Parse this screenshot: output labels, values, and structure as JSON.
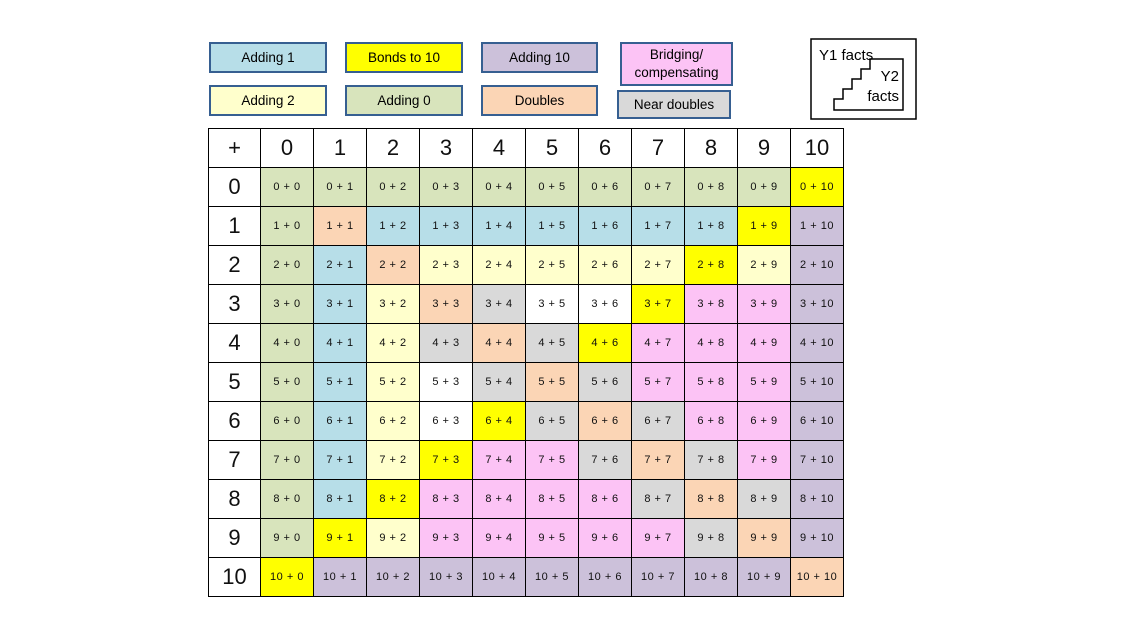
{
  "page": {
    "background": "#FFFFFF"
  },
  "colors": {
    "adding0": "#D8E4BC",
    "adding1": "#B7DEE8",
    "adding2": "#FFFFCC",
    "bonds10": "#FFFF00",
    "adding10": "#CCC1DA",
    "doubles": "#FBD5B5",
    "near": "#D9D9D9",
    "bridge": "#FCC3F5",
    "none": "#FFFFFF",
    "legend_border": "#365F91",
    "grid_line": "#000000"
  },
  "legend": {
    "items": [
      {
        "lines": [
          "Adding 1"
        ],
        "category": "adding1"
      },
      {
        "lines": [
          "Bonds to 10"
        ],
        "category": "bonds10"
      },
      {
        "lines": [
          "Adding 10"
        ],
        "category": "adding10"
      },
      {
        "lines": [
          "Bridging/",
          "compensating"
        ],
        "category": "bridge"
      },
      {
        "lines": [
          "Adding 2"
        ],
        "category": "adding2"
      },
      {
        "lines": [
          "Adding 0"
        ],
        "category": "adding0"
      },
      {
        "lines": [
          "Doubles"
        ],
        "category": "doubles"
      },
      {
        "lines": [
          "Near doubles"
        ],
        "category": "near"
      }
    ]
  },
  "key_box": {
    "y1_label": "Y1 facts",
    "y2_line1": "Y2",
    "y2_line2": "facts"
  },
  "table": {
    "corner_label": "+",
    "col_headers": [
      "0",
      "1",
      "2",
      "3",
      "4",
      "5",
      "6",
      "7",
      "8",
      "9",
      "10"
    ],
    "row_headers": [
      "0",
      "1",
      "2",
      "3",
      "4",
      "5",
      "6",
      "7",
      "8",
      "9",
      "10"
    ],
    "cell_text_format": "{r} + {c}",
    "categories": [
      [
        "adding0",
        "adding0",
        "adding0",
        "adding0",
        "adding0",
        "adding0",
        "adding0",
        "adding0",
        "adding0",
        "adding0",
        "bonds10"
      ],
      [
        "adding0",
        "doubles",
        "adding1",
        "adding1",
        "adding1",
        "adding1",
        "adding1",
        "adding1",
        "adding1",
        "bonds10",
        "adding10"
      ],
      [
        "adding0",
        "adding1",
        "doubles",
        "adding2",
        "adding2",
        "adding2",
        "adding2",
        "adding2",
        "bonds10",
        "adding2",
        "adding10"
      ],
      [
        "adding0",
        "adding1",
        "adding2",
        "doubles",
        "near",
        "none",
        "none",
        "bonds10",
        "bridge",
        "bridge",
        "adding10"
      ],
      [
        "adding0",
        "adding1",
        "adding2",
        "near",
        "doubles",
        "near",
        "bonds10",
        "bridge",
        "bridge",
        "bridge",
        "adding10"
      ],
      [
        "adding0",
        "adding1",
        "adding2",
        "none",
        "near",
        "doubles",
        "near",
        "bridge",
        "bridge",
        "bridge",
        "adding10"
      ],
      [
        "adding0",
        "adding1",
        "adding2",
        "none",
        "bonds10",
        "near",
        "doubles",
        "near",
        "bridge",
        "bridge",
        "adding10"
      ],
      [
        "adding0",
        "adding1",
        "adding2",
        "bonds10",
        "bridge",
        "bridge",
        "near",
        "doubles",
        "near",
        "bridge",
        "adding10"
      ],
      [
        "adding0",
        "adding1",
        "bonds10",
        "bridge",
        "bridge",
        "bridge",
        "bridge",
        "near",
        "doubles",
        "near",
        "adding10"
      ],
      [
        "adding0",
        "bonds10",
        "adding2",
        "bridge",
        "bridge",
        "bridge",
        "bridge",
        "bridge",
        "near",
        "doubles",
        "adding10"
      ],
      [
        "bonds10",
        "adding10",
        "adding10",
        "adding10",
        "adding10",
        "adding10",
        "adding10",
        "adding10",
        "adding10",
        "adding10",
        "doubles"
      ]
    ],
    "y2_start_col": [
      10,
      10,
      10,
      8,
      7,
      6,
      5,
      4,
      3,
      3,
      0
    ]
  }
}
